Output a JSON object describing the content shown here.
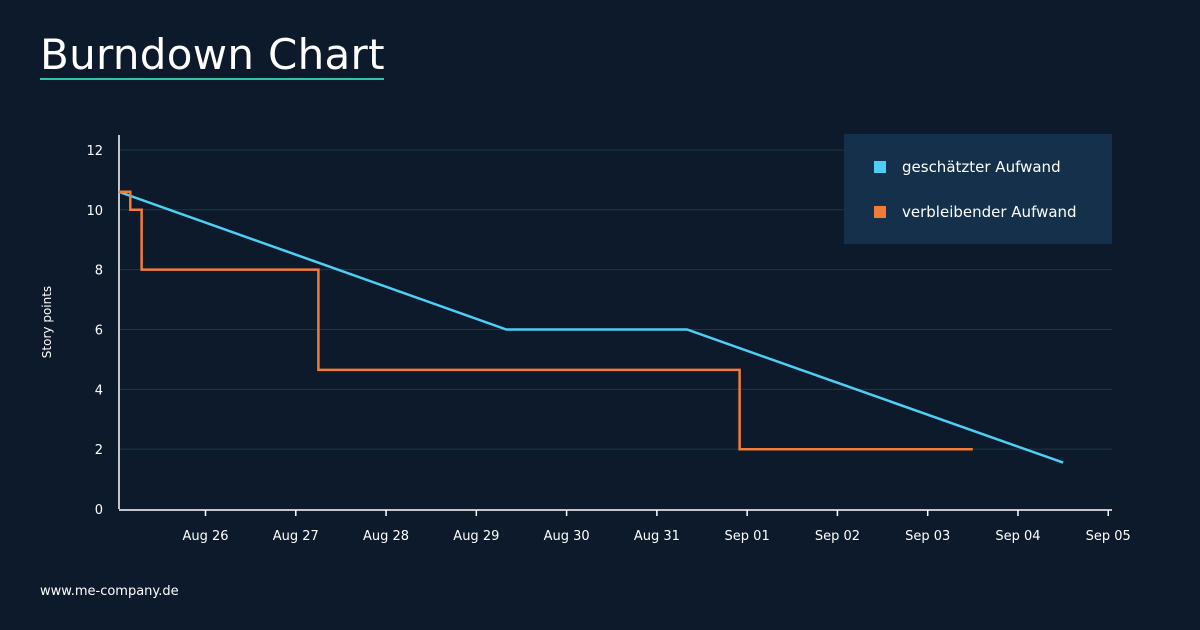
{
  "page": {
    "title": "Burndown Chart",
    "footer_url": "www.me-company.de"
  },
  "colors": {
    "background": "#0c1a2b",
    "title_underline": "#2ec4a6",
    "gridline": "#163a4a",
    "axis": "#ffffff",
    "legend_bg": "#14304a"
  },
  "chart_data": {
    "type": "line",
    "title": "",
    "xlabel": "",
    "ylabel": "Story points",
    "x_ticks": [
      "Aug 26",
      "Aug 27",
      "Aug 28",
      "Aug 29",
      "Aug 30",
      "Aug 31",
      "Sep 01",
      "Sep 02",
      "Sep 03",
      "Sep 04",
      "Sep 05"
    ],
    "y_ticks": [
      0,
      2,
      4,
      6,
      8,
      10,
      12
    ],
    "xlim": [
      "2024-08-25T13:00",
      "2024-09-05T13:00"
    ],
    "ylim": [
      0,
      12.5
    ],
    "grid": true,
    "legend_position": "top-right",
    "series": [
      {
        "name": "geschätzter Aufwand",
        "color": "#4dcff5",
        "step": false,
        "points": [
          {
            "x": "2024-08-25T13:00",
            "y": 10.6
          },
          {
            "x": "2024-08-29T20:00",
            "y": 6
          },
          {
            "x": "2024-08-31T20:00",
            "y": 6
          },
          {
            "x": "2024-09-05T00:00",
            "y": 1.55
          }
        ]
      },
      {
        "name": "verbleibender Aufwand",
        "color": "#f47b35",
        "step": true,
        "points": [
          {
            "x": "2024-08-25T13:00",
            "y": 10.6
          },
          {
            "x": "2024-08-25T16:00",
            "y": 10
          },
          {
            "x": "2024-08-25T19:00",
            "y": 8
          },
          {
            "x": "2024-08-27T18:00",
            "y": 4.65
          },
          {
            "x": "2024-09-01T10:00",
            "y": 2
          },
          {
            "x": "2024-09-04T00:00",
            "y": 2
          }
        ]
      }
    ]
  }
}
